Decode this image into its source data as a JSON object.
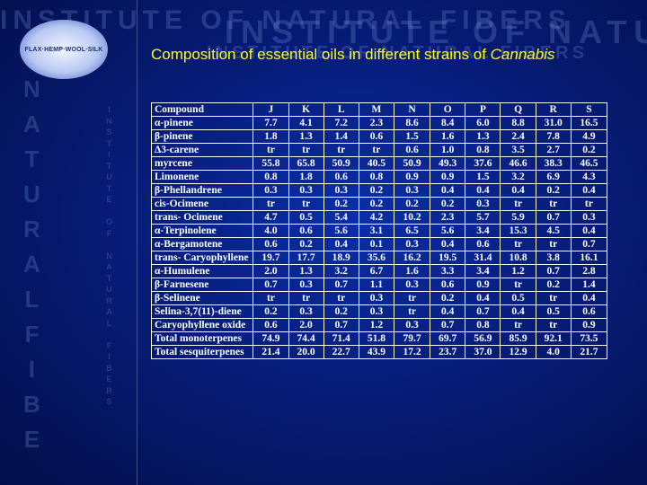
{
  "watermark": {
    "top_line1": "INSTITUTE OF NATURAL FIBERS",
    "top_line2": "INSTITUTE OF NATURAL FIBER",
    "top_line3": "INSTITUTE OF NATURAL FIBERS",
    "left_letters": [
      "N",
      "A",
      "T",
      "U",
      "R",
      "A",
      "L",
      "F",
      "I",
      "B",
      "E"
    ],
    "left_small_letters": [
      "I",
      "N",
      "S",
      "T",
      "I",
      "T",
      "U",
      "T",
      "E",
      "",
      "O",
      "F",
      "",
      "N",
      "A",
      "T",
      "U",
      "R",
      "A",
      "L",
      "",
      "F",
      "I",
      "B",
      "E",
      "R",
      "S"
    ]
  },
  "logo": {
    "text": "FLAX·HEMP·WOOL·SILK"
  },
  "title": {
    "prefix": "Composition of essential oils in different strains of ",
    "italic": "Cannabis"
  },
  "table": {
    "headers": [
      "Compound",
      "J",
      "K",
      "L",
      "M",
      "N",
      "O",
      "P",
      "Q",
      "R",
      "S"
    ],
    "rows": [
      {
        "compound": "α-pinene",
        "values": [
          "7.7",
          "4.1",
          "7.2",
          "2.3",
          "8.6",
          "8.4",
          "6.0",
          "8.8",
          "31.0",
          "16.5"
        ]
      },
      {
        "compound": "β-pinene",
        "values": [
          "1.8",
          "1.3",
          "1.4",
          "0.6",
          "1.5",
          "1.6",
          "1.3",
          "2.4",
          "7.8",
          "4.9"
        ]
      },
      {
        "compound": "Δ3-carene",
        "values": [
          "tr",
          "tr",
          "tr",
          "tr",
          "0.6",
          "1.0",
          "0.8",
          "3.5",
          "2.7",
          "0.2"
        ]
      },
      {
        "compound": "myrcene",
        "values": [
          "55.8",
          "65.8",
          "50.9",
          "40.5",
          "50.9",
          "49.3",
          "37.6",
          "46.6",
          "38.3",
          "46.5"
        ]
      },
      {
        "compound": "Limonene",
        "values": [
          "0.8",
          "1.8",
          "0.6",
          "0.8",
          "0.9",
          "0.9",
          "1.5",
          "3.2",
          "6.9",
          "4.3"
        ]
      },
      {
        "compound": "β-Phellandrene",
        "values": [
          "0.3",
          "0.3",
          "0.3",
          "0.2",
          "0.3",
          "0.4",
          "0.4",
          "0.4",
          "0.2",
          "0.4"
        ]
      },
      {
        "compound": "cis-Ocimene",
        "values": [
          "tr",
          "tr",
          "0.2",
          "0.2",
          "0.2",
          "0.2",
          "0.3",
          "tr",
          "tr",
          "tr"
        ]
      },
      {
        "compound": "trans- Ocimene",
        "values": [
          "4.7",
          "0.5",
          "5.4",
          "4.2",
          "10.2",
          "2.3",
          "5.7",
          "5.9",
          "0.7",
          "0.3"
        ]
      },
      {
        "compound": "α-Terpinolene",
        "values": [
          "4.0",
          "0.6",
          "5.6",
          "3.1",
          "6.5",
          "5.6",
          "3.4",
          "15.3",
          "4.5",
          "0.4"
        ]
      },
      {
        "compound": "α-Bergamotene",
        "values": [
          "0.6",
          "0.2",
          "0.4",
          "0.1",
          "0.3",
          "0.4",
          "0.6",
          "tr",
          "tr",
          "0.7"
        ]
      },
      {
        "compound": "trans- Caryophyllene",
        "values": [
          "19.7",
          "17.7",
          "18.9",
          "35.6",
          "16.2",
          "19.5",
          "31.4",
          "10.8",
          "3.8",
          "16.1"
        ]
      },
      {
        "compound": "α-Humulene",
        "values": [
          "2.0",
          "1.3",
          "3.2",
          "6.7",
          "1.6",
          "3.3",
          "3.4",
          "1.2",
          "0.7",
          "2.8"
        ]
      },
      {
        "compound": "β-Farnesene",
        "values": [
          "0.7",
          "0.3",
          "0.7",
          "1.1",
          "0.3",
          "0.6",
          "0.9",
          "tr",
          "0.2",
          "1.4"
        ]
      },
      {
        "compound": "β-Selinene",
        "values": [
          "tr",
          "tr",
          "tr",
          "0.3",
          "tr",
          "0.2",
          "0.4",
          "0.5",
          "tr",
          "0.4"
        ]
      },
      {
        "compound": "Selina-3,7(11)-diene",
        "values": [
          "0.2",
          "0.3",
          "0.2",
          "0.3",
          "tr",
          "0.4",
          "0.7",
          "0.4",
          "0.5",
          "0.6"
        ]
      },
      {
        "compound": "Caryophyllene oxide",
        "values": [
          "0.6",
          "2.0",
          "0.7",
          "1.2",
          "0.3",
          "0.7",
          "0.8",
          "tr",
          "tr",
          "0.9"
        ]
      },
      {
        "compound": "Total monoterpenes",
        "values": [
          "74.9",
          "74.4",
          "71.4",
          "51.8",
          "79.7",
          "69.7",
          "56.9",
          "85.9",
          "92.1",
          "73.5"
        ]
      },
      {
        "compound": "Total sesquiterpenes",
        "values": [
          "21.4",
          "20.0",
          "22.7",
          "43.9",
          "17.2",
          "23.7",
          "37.0",
          "12.9",
          "4.0",
          "21.7"
        ]
      }
    ]
  }
}
